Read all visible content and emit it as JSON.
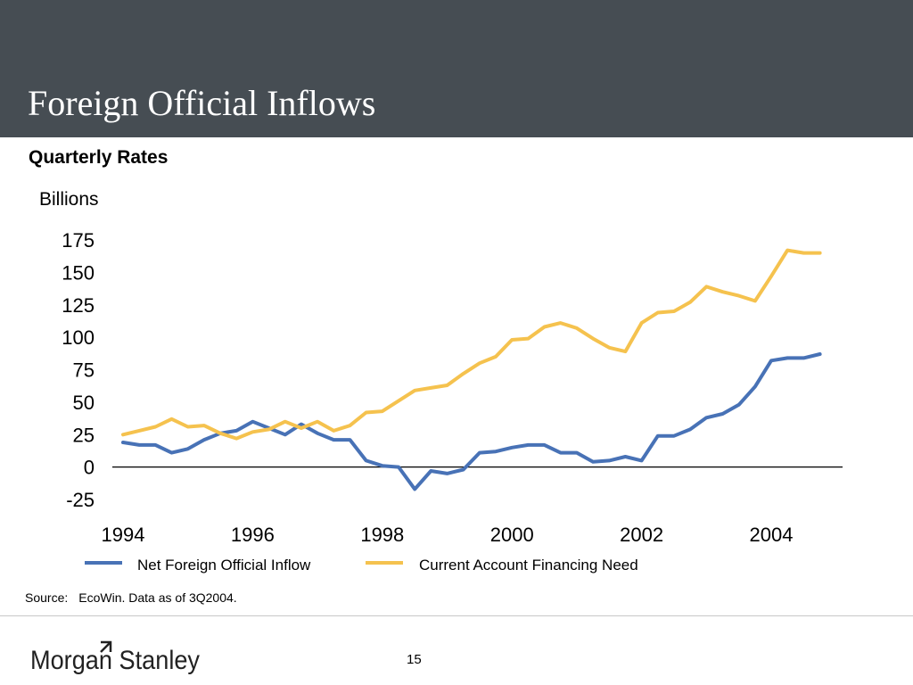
{
  "header": {
    "title": "Foreign Official Inflows"
  },
  "subtitle": "Quarterly Rates",
  "unit_label": "Billions",
  "source": {
    "label": "Source:",
    "text": "EcoWin.  Data as of 3Q2004."
  },
  "logo": {
    "text": "Morgan Stanley",
    "color": "#222222"
  },
  "page_number": "15",
  "colors": {
    "header_bg": "#464d53",
    "net_inflow": "#4872b6",
    "financing_need": "#f5c24e"
  },
  "chart_data": {
    "type": "line",
    "title": "",
    "xlabel": "",
    "ylabel": "Billions",
    "xlim": [
      1994,
      2005.1
    ],
    "ylim": [
      -25,
      175
    ],
    "yticks": [
      175,
      150,
      125,
      100,
      75,
      50,
      25,
      0,
      -25
    ],
    "xticks": [
      1994,
      1996,
      1998,
      2000,
      2002,
      2004
    ],
    "grid": false,
    "legend_position": "bottom",
    "series": [
      {
        "name": "Net Foreign Official Inflow",
        "color": "#4872b6",
        "x": [
          1994.0,
          1994.25,
          1994.5,
          1994.75,
          1995.0,
          1995.25,
          1995.5,
          1995.75,
          1996.0,
          1996.25,
          1996.5,
          1996.75,
          1997.0,
          1997.25,
          1997.5,
          1997.75,
          1998.0,
          1998.25,
          1998.5,
          1998.75,
          1999.0,
          1999.25,
          1999.5,
          1999.75,
          2000.0,
          2000.25,
          2000.5,
          2000.75,
          2001.0,
          2001.25,
          2001.5,
          2001.75,
          2002.0,
          2002.25,
          2002.5,
          2002.75,
          2003.0,
          2003.25,
          2003.5,
          2003.75,
          2004.0,
          2004.25,
          2004.5,
          2004.75
        ],
        "y": [
          19,
          17,
          17,
          11,
          14,
          21,
          26,
          28,
          35,
          30,
          25,
          33,
          26,
          21,
          21,
          5,
          1,
          0,
          -17,
          -3,
          -5,
          -2,
          11,
          12,
          15,
          17,
          17,
          11,
          11,
          4,
          5,
          8,
          5,
          24,
          24,
          29,
          38,
          41,
          48,
          62,
          82,
          84,
          84,
          87
        ]
      },
      {
        "name": "Current Account Financing Need",
        "color": "#f5c24e",
        "x": [
          1994.0,
          1994.25,
          1994.5,
          1994.75,
          1995.0,
          1995.25,
          1995.5,
          1995.75,
          1996.0,
          1996.25,
          1996.5,
          1996.75,
          1997.0,
          1997.25,
          1997.5,
          1997.75,
          1998.0,
          1998.25,
          1998.5,
          1998.75,
          1999.0,
          1999.25,
          1999.5,
          1999.75,
          2000.0,
          2000.25,
          2000.5,
          2000.75,
          2001.0,
          2001.25,
          2001.5,
          2001.75,
          2002.0,
          2002.25,
          2002.5,
          2002.75,
          2003.0,
          2003.25,
          2003.5,
          2003.75,
          2004.0,
          2004.25,
          2004.5,
          2004.75
        ],
        "y": [
          25,
          28,
          31,
          37,
          31,
          32,
          26,
          22,
          27,
          29,
          35,
          30,
          35,
          28,
          32,
          42,
          43,
          51,
          59,
          61,
          63,
          72,
          80,
          85,
          98,
          99,
          108,
          111,
          107,
          99,
          92,
          89,
          111,
          119,
          120,
          127,
          139,
          135,
          132,
          128,
          147,
          167,
          165,
          165
        ]
      }
    ]
  }
}
